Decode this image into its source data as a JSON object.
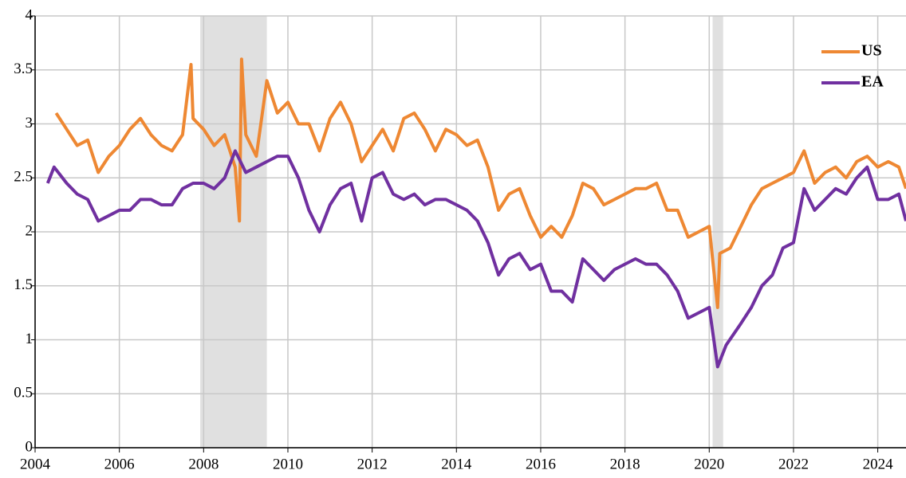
{
  "chart_data": {
    "type": "line",
    "xlim": [
      2004,
      2024.67
    ],
    "xticks": [
      2004,
      2006,
      2008,
      2010,
      2012,
      2014,
      2016,
      2018,
      2020,
      2022,
      2024
    ],
    "ylim": [
      0,
      4
    ],
    "yticks": [
      0,
      0.5,
      1,
      1.5,
      2,
      2.5,
      3,
      3.5,
      4
    ],
    "grid": true,
    "legend": "upper right",
    "shaded_regions": [
      [
        2007.92,
        2009.5
      ],
      [
        2020.08,
        2020.33
      ]
    ],
    "shade_color": "#e0e0e0",
    "series": [
      {
        "name": "US",
        "color": "#ee8833",
        "x": [
          2004.5,
          2004.75,
          2005.0,
          2005.25,
          2005.5,
          2005.75,
          2006.0,
          2006.25,
          2006.5,
          2006.75,
          2007.0,
          2007.25,
          2007.5,
          2007.7,
          2007.75,
          2008.0,
          2008.25,
          2008.5,
          2008.75,
          2008.85,
          2008.9,
          2009.0,
          2009.25,
          2009.5,
          2009.75,
          2010.0,
          2010.25,
          2010.5,
          2010.75,
          2011.0,
          2011.25,
          2011.5,
          2011.75,
          2012.0,
          2012.25,
          2012.5,
          2012.75,
          2013.0,
          2013.25,
          2013.5,
          2013.75,
          2014.0,
          2014.25,
          2014.5,
          2014.75,
          2015.0,
          2015.25,
          2015.5,
          2015.75,
          2016.0,
          2016.25,
          2016.5,
          2016.75,
          2017.0,
          2017.25,
          2017.5,
          2017.75,
          2018.0,
          2018.25,
          2018.5,
          2018.75,
          2019.0,
          2019.25,
          2019.5,
          2019.75,
          2020.0,
          2020.2,
          2020.25,
          2020.5,
          2020.75,
          2021.0,
          2021.25,
          2021.5,
          2021.75,
          2022.0,
          2022.25,
          2022.5,
          2022.75,
          2023.0,
          2023.25,
          2023.5,
          2023.75,
          2024.0,
          2024.25,
          2024.5,
          2024.67
        ],
        "values": [
          3.1,
          2.95,
          2.8,
          2.85,
          2.55,
          2.7,
          2.8,
          2.95,
          3.05,
          2.9,
          2.8,
          2.75,
          2.9,
          3.55,
          3.05,
          2.95,
          2.8,
          2.9,
          2.6,
          2.1,
          3.6,
          2.9,
          2.7,
          3.4,
          3.1,
          3.2,
          3.0,
          3.0,
          2.75,
          3.05,
          3.2,
          3.0,
          2.65,
          2.8,
          2.95,
          2.75,
          3.05,
          3.1,
          2.95,
          2.75,
          2.95,
          2.9,
          2.8,
          2.85,
          2.6,
          2.2,
          2.35,
          2.4,
          2.15,
          1.95,
          2.05,
          1.95,
          2.15,
          2.45,
          2.4,
          2.25,
          2.3,
          2.35,
          2.4,
          2.4,
          2.45,
          2.2,
          2.2,
          1.95,
          2.0,
          2.05,
          1.3,
          1.8,
          1.85,
          2.05,
          2.25,
          2.4,
          2.45,
          2.5,
          2.55,
          2.75,
          2.45,
          2.55,
          2.6,
          2.5,
          2.65,
          2.7,
          2.6,
          2.65,
          2.6,
          2.4
        ]
      },
      {
        "name": "EA",
        "color": "#7030a0",
        "x": [
          2004.3,
          2004.45,
          2004.75,
          2005.0,
          2005.25,
          2005.5,
          2005.75,
          2006.0,
          2006.25,
          2006.5,
          2006.75,
          2007.0,
          2007.25,
          2007.5,
          2007.75,
          2008.0,
          2008.25,
          2008.5,
          2008.75,
          2009.0,
          2009.25,
          2009.5,
          2009.75,
          2010.0,
          2010.25,
          2010.5,
          2010.75,
          2011.0,
          2011.25,
          2011.5,
          2011.75,
          2012.0,
          2012.25,
          2012.5,
          2012.75,
          2013.0,
          2013.25,
          2013.5,
          2013.75,
          2014.0,
          2014.25,
          2014.5,
          2014.75,
          2015.0,
          2015.25,
          2015.5,
          2015.75,
          2016.0,
          2016.25,
          2016.5,
          2016.75,
          2017.0,
          2017.25,
          2017.5,
          2017.75,
          2018.0,
          2018.25,
          2018.5,
          2018.75,
          2019.0,
          2019.25,
          2019.5,
          2019.75,
          2020.0,
          2020.2,
          2020.4,
          2020.75,
          2021.0,
          2021.25,
          2021.5,
          2021.75,
          2022.0,
          2022.25,
          2022.5,
          2022.75,
          2023.0,
          2023.25,
          2023.5,
          2023.75,
          2024.0,
          2024.25,
          2024.5,
          2024.67
        ],
        "values": [
          2.45,
          2.6,
          2.45,
          2.35,
          2.3,
          2.1,
          2.15,
          2.2,
          2.2,
          2.3,
          2.3,
          2.25,
          2.25,
          2.4,
          2.45,
          2.45,
          2.4,
          2.5,
          2.75,
          2.55,
          2.6,
          2.65,
          2.7,
          2.7,
          2.5,
          2.2,
          2.0,
          2.25,
          2.4,
          2.45,
          2.1,
          2.5,
          2.55,
          2.35,
          2.3,
          2.35,
          2.25,
          2.3,
          2.3,
          2.25,
          2.2,
          2.1,
          1.9,
          1.6,
          1.75,
          1.8,
          1.65,
          1.7,
          1.45,
          1.45,
          1.35,
          1.75,
          1.65,
          1.55,
          1.65,
          1.7,
          1.75,
          1.7,
          1.7,
          1.6,
          1.45,
          1.2,
          1.25,
          1.3,
          0.75,
          0.95,
          1.15,
          1.3,
          1.5,
          1.6,
          1.85,
          1.9,
          2.4,
          2.2,
          2.3,
          2.4,
          2.35,
          2.5,
          2.6,
          2.3,
          2.3,
          2.35,
          2.1
        ]
      }
    ]
  }
}
